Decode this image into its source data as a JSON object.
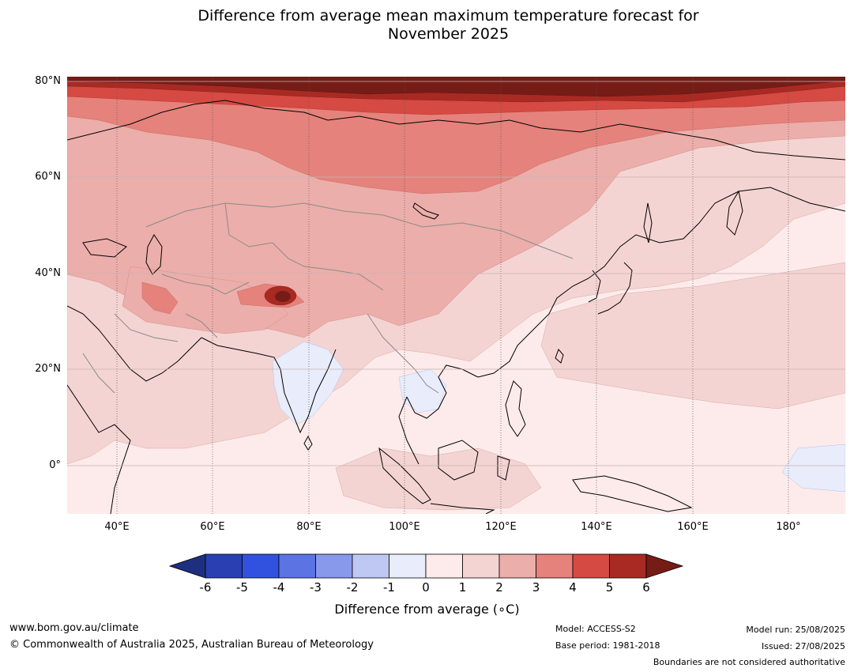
{
  "title": {
    "line1": "Difference from average mean maximum temperature forecast for",
    "line2": "November 2025"
  },
  "axes": {
    "lat_ticks": [
      "80°N",
      "60°N",
      "40°N",
      "20°N",
      "0°"
    ],
    "lon_ticks": [
      "40°E",
      "60°E",
      "80°E",
      "100°E",
      "120°E",
      "140°E",
      "160°E",
      "180°"
    ]
  },
  "map": {
    "extent": {
      "lon_min": 30,
      "lon_max": 192,
      "lat_min": -10,
      "lat_max": 80
    },
    "projection": "equirectangular",
    "gridlines": true,
    "coastlines": true,
    "country_boundaries": true
  },
  "colorbar": {
    "title": "Difference from average (∘C)",
    "tick_labels": [
      "-6",
      "-5",
      "-4",
      "-3",
      "-2",
      "-1",
      "0",
      "1",
      "2",
      "3",
      "4",
      "5",
      "6"
    ],
    "colors": [
      "#1f2f80",
      "#2a3fb1",
      "#3152df",
      "#5c73e4",
      "#8898ea",
      "#bfc8f2",
      "#e8ecfb",
      "#fcebea",
      "#f4d4d2",
      "#ecaeaa",
      "#e5827b",
      "#d54a43",
      "#a92a23",
      "#761c17"
    ],
    "extend": "both"
  },
  "footer": {
    "website": "www.bom.gov.au/climate",
    "copyright": "© Commonwealth of Australia 2025, Australian Bureau of Meteorology",
    "model": "Model: ACCESS-S2",
    "base_period": "Base period: 1981-2018",
    "model_run": "Model run: 25/08/2025",
    "issued": "Issued: 27/08/2025",
    "disclaimer": "Boundaries are not considered authoritative"
  }
}
